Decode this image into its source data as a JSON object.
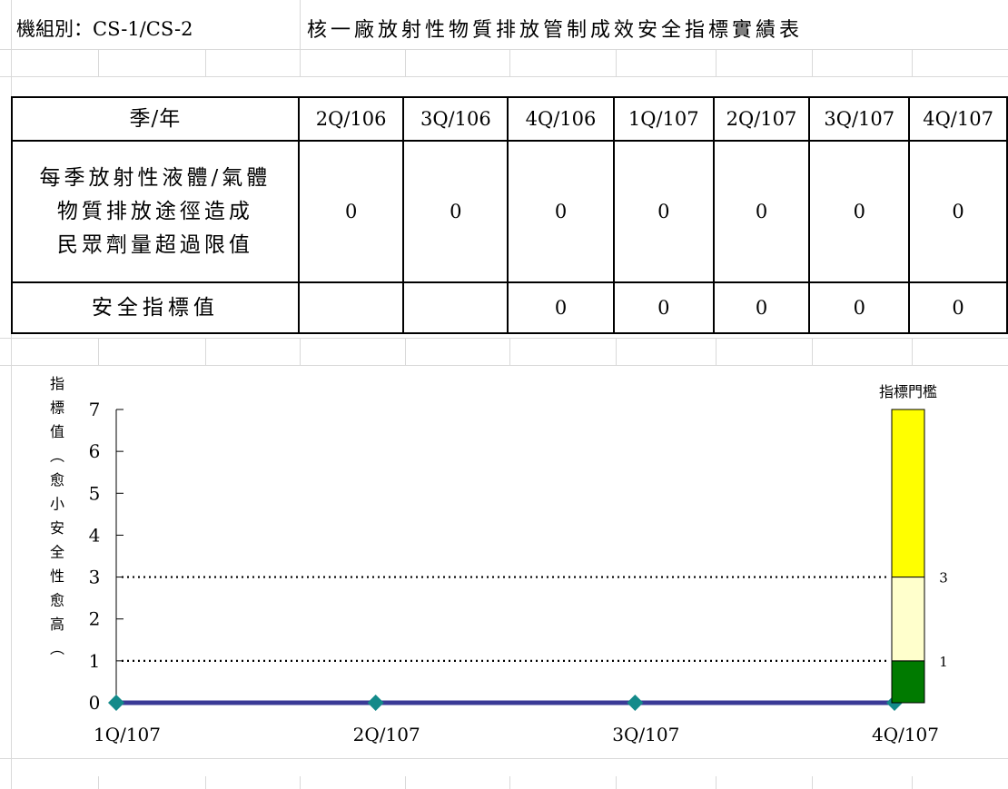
{
  "header": {
    "unit_label": "機組別：CS-1/CS-2",
    "title": "核一廠放射性物質排放管制成效安全指標實績表"
  },
  "table": {
    "quarter_header": "季/年",
    "quarters": [
      "2Q/106",
      "3Q/106",
      "4Q/106",
      "1Q/107",
      "2Q/107",
      "3Q/107",
      "4Q/107"
    ],
    "rows": [
      {
        "label_lines": [
          "每季放射性液體/氣體",
          "物質排放途徑造成",
          "民眾劑量超過限值"
        ],
        "values": [
          "0",
          "0",
          "0",
          "0",
          "0",
          "0",
          "0"
        ]
      },
      {
        "label_lines": [
          "安全指標值"
        ],
        "values": [
          "",
          "",
          "0",
          "0",
          "0",
          "0",
          "0"
        ]
      }
    ]
  },
  "chart_data": {
    "type": "line",
    "ylabel": "指標值︵愈小安全性愈高︵",
    "ylim": [
      0,
      7
    ],
    "yticks": [
      "0",
      "1",
      "2",
      "3",
      "4",
      "5",
      "6",
      "7"
    ],
    "categories": [
      "1Q/107",
      "2Q/107",
      "3Q/107",
      "4Q/107"
    ],
    "series": [
      {
        "values": [
          0,
          0,
          0,
          0
        ],
        "color": "#3a3a96",
        "marker_color": "#138a8a"
      }
    ],
    "threshold_lines": [
      3,
      1
    ],
    "threshold_bar": {
      "label": "指標門檻",
      "segments": [
        {
          "from": 0,
          "to": 1,
          "color": "#007a00"
        },
        {
          "from": 1,
          "to": 3,
          "color": "#ffffcc"
        },
        {
          "from": 3,
          "to": 7,
          "color": "#ffff00"
        }
      ],
      "marker_labels": [
        "3",
        "1"
      ]
    }
  }
}
